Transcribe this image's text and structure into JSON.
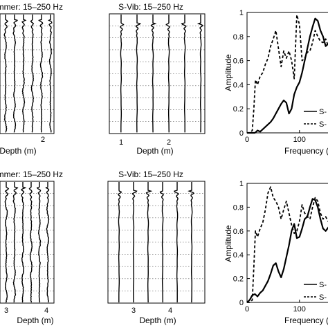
{
  "chart_data": [
    {
      "type": "line",
      "panel": "seismogram",
      "title": "ammer: 15–250 Hz",
      "xlabel": "Depth (m)",
      "x_tick_labels": [
        "2"
      ],
      "traces": 6,
      "onset_fraction": 0.05,
      "energy": "distributed"
    },
    {
      "type": "line",
      "panel": "seismogram",
      "title": "S-Vib: 15–250 Hz",
      "xlabel": "Depth (m)",
      "x_tick_labels": [
        "1",
        "2"
      ],
      "traces": 6,
      "onset_fraction": 0.08,
      "energy": "early"
    },
    {
      "type": "line",
      "panel": "spectrum",
      "title": "",
      "xlabel": "Frequency (",
      "ylabel": "Amplitude",
      "x_ticks": [
        0,
        100
      ],
      "y_ticks": [
        0,
        0.2,
        0.4,
        0.6,
        0.8,
        1
      ],
      "xlim": [
        0,
        165
      ],
      "ylim": [
        0,
        1
      ],
      "legend_labels": [
        "S-",
        "S-"
      ],
      "series": [
        {
          "style": "solid",
          "x": [
            0,
            10,
            15,
            20,
            25,
            30,
            35,
            40,
            45,
            50,
            55,
            60,
            65,
            70,
            75,
            80,
            85,
            90,
            95,
            100,
            105,
            110,
            115,
            120,
            125,
            130,
            135,
            140,
            145,
            150,
            155,
            160,
            165
          ],
          "y": [
            0,
            0,
            0,
            0.02,
            0.01,
            0.03,
            0.05,
            0.07,
            0.09,
            0.12,
            0.16,
            0.2,
            0.24,
            0.27,
            0.25,
            0.16,
            0.2,
            0.32,
            0.38,
            0.42,
            0.5,
            0.6,
            0.7,
            0.8,
            0.88,
            0.95,
            0.93,
            0.85,
            0.8,
            0.72,
            0.74,
            0.72,
            0.7
          ]
        },
        {
          "style": "dashed",
          "x": [
            0,
            5,
            10,
            13,
            16,
            20,
            25,
            30,
            35,
            40,
            45,
            50,
            55,
            60,
            65,
            70,
            75,
            80,
            85,
            90,
            95,
            100,
            105,
            110,
            115,
            120,
            125,
            130,
            135,
            140,
            145,
            150,
            155,
            160,
            165
          ],
          "y": [
            0,
            0,
            0.02,
            0.2,
            0.44,
            0.4,
            0.47,
            0.5,
            0.57,
            0.62,
            0.72,
            0.78,
            0.85,
            0.7,
            0.55,
            0.68,
            0.62,
            0.68,
            0.6,
            0.45,
            0.98,
            0.9,
            0.6,
            0.62,
            0.67,
            0.68,
            0.75,
            0.85,
            0.8,
            0.76,
            0.75,
            0.78,
            0.72,
            0.75,
            0.73
          ]
        }
      ]
    },
    {
      "type": "line",
      "panel": "seismogram",
      "title": "ammer: 15–250 Hz",
      "xlabel": "Depth (m)",
      "x_tick_labels": [
        "3",
        "4"
      ],
      "traces": 6,
      "onset_fraction": 0.05,
      "energy": "distributed"
    },
    {
      "type": "line",
      "panel": "seismogram",
      "title": "S-Vib: 15–250 Hz",
      "xlabel": "Depth (m)",
      "x_tick_labels": [
        "3",
        "4"
      ],
      "traces": 6,
      "onset_fraction": 0.08,
      "energy": "early"
    },
    {
      "type": "line",
      "panel": "spectrum",
      "title": "",
      "xlabel": "Frequency (",
      "ylabel": "Amplitude",
      "x_ticks": [
        0,
        100
      ],
      "y_ticks": [
        0,
        0.2,
        0.4,
        0.6,
        0.8,
        1
      ],
      "xlim": [
        0,
        165
      ],
      "ylim": [
        0,
        1
      ],
      "legend_labels": [
        "S-",
        "S-"
      ],
      "series": [
        {
          "style": "solid",
          "x": [
            0,
            5,
            10,
            15,
            20,
            25,
            30,
            35,
            40,
            45,
            50,
            55,
            60,
            65,
            70,
            75,
            80,
            85,
            90,
            95,
            100,
            105,
            110,
            115,
            120,
            125,
            130,
            135,
            140,
            145,
            150,
            155,
            160,
            165
          ],
          "y": [
            0,
            0.02,
            0.06,
            0.07,
            0.05,
            0.08,
            0.1,
            0.14,
            0.18,
            0.24,
            0.31,
            0.33,
            0.26,
            0.21,
            0.28,
            0.38,
            0.48,
            0.6,
            0.66,
            0.54,
            0.55,
            0.62,
            0.7,
            0.72,
            0.8,
            0.87,
            0.86,
            0.8,
            0.7,
            0.62,
            0.6,
            0.63,
            0.62,
            0.61
          ]
        },
        {
          "style": "dashed",
          "x": [
            0,
            5,
            10,
            13,
            16,
            20,
            25,
            30,
            35,
            40,
            45,
            50,
            55,
            60,
            65,
            70,
            75,
            80,
            85,
            90,
            95,
            100,
            105,
            110,
            115,
            120,
            125,
            130,
            135,
            140,
            145,
            150,
            155,
            160,
            165
          ],
          "y": [
            0,
            0,
            0.02,
            0.3,
            0.6,
            0.55,
            0.62,
            0.67,
            0.78,
            0.92,
            0.97,
            0.88,
            0.85,
            0.8,
            0.7,
            0.78,
            0.85,
            0.75,
            0.65,
            0.58,
            0.6,
            0.68,
            0.82,
            0.75,
            0.72,
            0.7,
            0.8,
            0.88,
            0.85,
            0.75,
            0.7,
            0.72,
            0.68,
            0.7,
            0.68
          ]
        }
      ]
    }
  ]
}
